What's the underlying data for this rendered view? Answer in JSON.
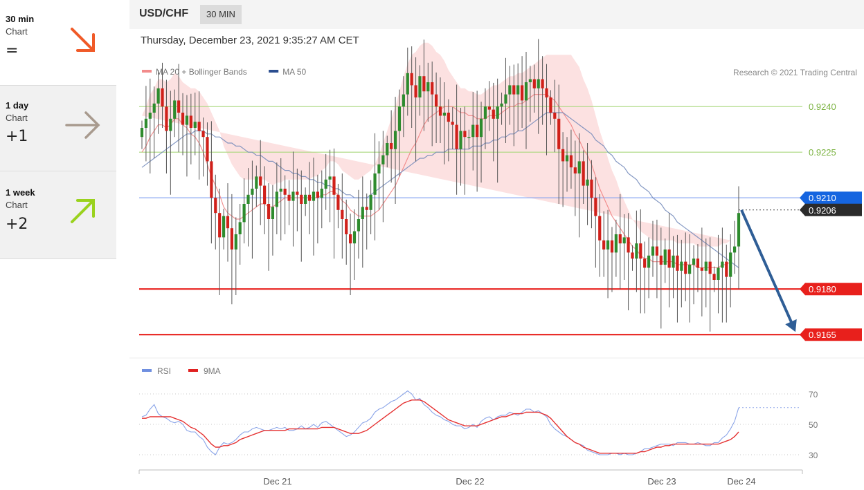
{
  "sidebar": {
    "items": [
      {
        "name": "30 min",
        "sub": "Chart",
        "score": "=",
        "icon": "arrow-down-right-icon",
        "color": "#f05a28"
      },
      {
        "name": "1 day",
        "sub": "Chart",
        "score": "+1",
        "icon": "arrow-right-icon",
        "color": "#a89a8e"
      },
      {
        "name": "1 week",
        "sub": "Chart",
        "score": "+2",
        "icon": "arrow-up-right-icon",
        "color": "#9ad21e"
      }
    ]
  },
  "header": {
    "symbol": "USD/CHF",
    "timeframe": "30 MIN",
    "datetime": "Thursday, December 23, 2021 9:35:27 AM CET"
  },
  "legend": {
    "price": [
      {
        "label": "MA 20 + Bollinger Bands",
        "color": "#f28b8b"
      },
      {
        "label": "MA 50",
        "color": "#2a4d8f"
      }
    ],
    "copyright": "Research © 2021 Trading Central",
    "rsi": [
      {
        "label": "RSI",
        "color": "#6f8fe0"
      },
      {
        "label": "9MA",
        "color": "#e02020"
      }
    ]
  },
  "chart_data": {
    "type": "candlestick",
    "ylim": [
      0.9158,
      0.9258
    ],
    "x_labels": [
      "Dec 21",
      "Dec 22",
      "Dec 23",
      "Dec 24"
    ],
    "levels": [
      {
        "value": 0.924,
        "label": "0.9240",
        "kind": "resistance"
      },
      {
        "value": 0.9225,
        "label": "0.9225",
        "kind": "resistance"
      },
      {
        "value": 0.921,
        "label": "0.9210",
        "kind": "pivot"
      },
      {
        "value": 0.918,
        "label": "0.9180",
        "kind": "support"
      },
      {
        "value": 0.9165,
        "label": "0.9165",
        "kind": "support"
      }
    ],
    "last_price": {
      "value": 0.9206,
      "label": "0.9206"
    },
    "closes": [
      0.9233,
      0.9236,
      0.9238,
      0.9241,
      0.9246,
      0.924,
      0.9232,
      0.9236,
      0.9242,
      0.9238,
      0.9234,
      0.9237,
      0.9233,
      0.9235,
      0.9232,
      0.923,
      0.9222,
      0.921,
      0.9205,
      0.9197,
      0.9204,
      0.92,
      0.9193,
      0.9198,
      0.9202,
      0.9208,
      0.9211,
      0.9213,
      0.9217,
      0.9214,
      0.9208,
      0.9203,
      0.9207,
      0.9212,
      0.9213,
      0.9211,
      0.9209,
      0.9212,
      0.9211,
      0.9208,
      0.9211,
      0.9209,
      0.9212,
      0.921,
      0.9213,
      0.9216,
      0.9217,
      0.9211,
      0.9206,
      0.9203,
      0.9198,
      0.9195,
      0.9199,
      0.9203,
      0.9207,
      0.9206,
      0.9211,
      0.9218,
      0.9221,
      0.9224,
      0.9228,
      0.9226,
      0.9232,
      0.924,
      0.9244,
      0.9251,
      0.9247,
      0.9243,
      0.925,
      0.9245,
      0.9248,
      0.9244,
      0.924,
      0.9237,
      0.9238,
      0.9235,
      0.9234,
      0.9226,
      0.9232,
      0.923,
      0.923,
      0.9234,
      0.923,
      0.9236,
      0.924,
      0.9239,
      0.9236,
      0.924,
      0.9241,
      0.9244,
      0.9247,
      0.9244,
      0.9247,
      0.9242,
      0.9248,
      0.9249,
      0.9246,
      0.9249,
      0.9246,
      0.9243,
      0.9238,
      0.9236,
      0.9226,
      0.9222,
      0.9224,
      0.922,
      0.9218,
      0.9222,
      0.9214,
      0.9216,
      0.921,
      0.9204,
      0.9196,
      0.9193,
      0.9196,
      0.9192,
      0.9198,
      0.9195,
      0.9197,
      0.9192,
      0.919,
      0.9195,
      0.919,
      0.9187,
      0.9191,
      0.9194,
      0.9191,
      0.9188,
      0.9193,
      0.9187,
      0.9191,
      0.9186,
      0.9189,
      0.9185,
      0.9188,
      0.919,
      0.9187,
      0.9186,
      0.9189,
      0.9185,
      0.9183,
      0.9187,
      0.9189,
      0.9184,
      0.9192,
      0.9194,
      0.9205
    ],
    "ma20": [
      0.9225,
      0.9227,
      0.923,
      0.9232,
      0.9234,
      0.9234,
      0.9233,
      0.9234,
      0.9236,
      0.9236,
      0.9234,
      0.9233,
      0.9231,
      0.923,
      0.9228,
      0.9225,
      0.9221,
      0.9217,
      0.9214,
      0.9211,
      0.9207,
      0.9205,
      0.9204,
      0.9203,
      0.9203,
      0.9204,
      0.9205,
      0.9206,
      0.9207,
      0.9208,
      0.9208,
      0.9207,
      0.9207,
      0.9208,
      0.9209,
      0.921,
      0.921,
      0.921,
      0.921,
      0.921,
      0.921,
      0.921,
      0.921,
      0.921,
      0.9211,
      0.9211,
      0.9212,
      0.9212,
      0.9211,
      0.9209,
      0.9208,
      0.9206,
      0.9205,
      0.9204,
      0.9204,
      0.9204,
      0.9204,
      0.9205,
      0.9206,
      0.9208,
      0.921,
      0.9212,
      0.9214,
      0.9217,
      0.922,
      0.9223,
      0.9226,
      0.9228,
      0.9231,
      0.9234,
      0.9236,
      0.9237,
      0.9238,
      0.9239,
      0.924,
      0.924,
      0.924,
      0.9239,
      0.9238,
      0.9238,
      0.9237,
      0.9237,
      0.9236,
      0.9236,
      0.9236,
      0.9237,
      0.9237,
      0.9237,
      0.9238,
      0.9239,
      0.924,
      0.924,
      0.9241,
      0.9241,
      0.9242,
      0.9243,
      0.9244,
      0.9244,
      0.9244,
      0.9244,
      0.9243,
      0.9242,
      0.924,
      0.9238,
      0.9236,
      0.9234,
      0.9231,
      0.9229,
      0.9226,
      0.9224,
      0.9221,
      0.9217,
      0.9213,
      0.921,
      0.9207,
      0.9204,
      0.9202,
      0.92,
      0.9198,
      0.9196,
      0.9194,
      0.9193,
      0.9191,
      0.919,
      0.919,
      0.9189,
      0.9189,
      0.9189,
      0.9189,
      0.9189,
      0.9189,
      0.9188,
      0.9188,
      0.9188,
      0.9188,
      0.9188,
      0.9187,
      0.9187,
      0.9187,
      0.9187,
      0.9187,
      0.9187,
      0.9188,
      0.9188,
      0.9189
    ],
    "ma50": [
      0.922,
      0.9221,
      0.9222,
      0.9223,
      0.9224,
      0.9225,
      0.9226,
      0.9227,
      0.9228,
      0.9229,
      0.923,
      0.9231,
      0.9231,
      0.9232,
      0.9232,
      0.9232,
      0.9231,
      0.9231,
      0.923,
      0.923,
      0.9229,
      0.9228,
      0.9228,
      0.9227,
      0.9227,
      0.9226,
      0.9225,
      0.9225,
      0.9224,
      0.9224,
      0.9223,
      0.9222,
      0.9222,
      0.9221,
      0.922,
      0.9219,
      0.9219,
      0.9218,
      0.9218,
      0.9217,
      0.9217,
      0.9216,
      0.9216,
      0.9215,
      0.9215,
      0.9214,
      0.9214,
      0.9213,
      0.9213,
      0.9212,
      0.9211,
      0.9211,
      0.921,
      0.921,
      0.921,
      0.921,
      0.9211,
      0.9212,
      0.9213,
      0.9214,
      0.9215,
      0.9216,
      0.9217,
      0.9218,
      0.9219,
      0.922,
      0.9221,
      0.9222,
      0.9223,
      0.9223,
      0.9224,
      0.9224,
      0.9225,
      0.9225,
      0.9225,
      0.9226,
      0.9226,
      0.9226,
      0.9226,
      0.9226,
      0.9226,
      0.9227,
      0.9227,
      0.9227,
      0.9228,
      0.9228,
      0.9229,
      0.9229,
      0.923,
      0.923,
      0.9231,
      0.9231,
      0.9232,
      0.9232,
      0.9233,
      0.9234,
      0.9235,
      0.9236,
      0.9237,
      0.9238,
      0.9238,
      0.9238,
      0.9238,
      0.9238,
      0.9237,
      0.9236,
      0.9235,
      0.9234,
      0.9233,
      0.9232,
      0.9231,
      0.9229,
      0.9228,
      0.9227,
      0.9225,
      0.9224,
      0.9222,
      0.9221,
      0.922,
      0.9218,
      0.9217,
      0.9216,
      0.9214,
      0.9213,
      0.9212,
      0.921,
      0.9209,
      0.9208,
      0.9206,
      0.9205,
      0.9204,
      0.9202,
      0.9201,
      0.92,
      0.9199,
      0.9198,
      0.9197,
      0.9196,
      0.9195,
      0.9194,
      0.9193,
      0.9192,
      0.9191,
      0.919,
      0.9189,
      0.9188,
      0.9187
    ],
    "bb_width": [
      0.0012,
      0.0013,
      0.0014,
      0.0014,
      0.0015,
      0.0015,
      0.0015,
      0.0015,
      0.0015,
      0.0014,
      0.0014,
      0.0014,
      0.0015,
      0.0016,
      0.0017,
      0.0018,
      0.002,
      0.0021,
      0.0021,
      0.0021,
      0.002,
      0.0019,
      0.0017,
      0.0016,
      0.0014,
      0.0012,
      0.0011,
      0.001,
      0.0009,
      0.0008,
      0.0008,
      0.0008,
      0.0007,
      0.0007,
      0.0006,
      0.0006,
      0.0006,
      0.0006,
      0.0006,
      0.0006,
      0.0006,
      0.0006,
      0.0007,
      0.0007,
      0.0008,
      0.0009,
      0.001,
      0.001,
      0.001,
      0.001,
      0.001,
      0.0011,
      0.0011,
      0.0012,
      0.0013,
      0.0014,
      0.0015,
      0.0016,
      0.0018,
      0.002,
      0.0022,
      0.0024,
      0.0026,
      0.0028,
      0.003,
      0.0031,
      0.0031,
      0.003,
      0.0029,
      0.0027,
      0.0025,
      0.0023,
      0.002,
      0.0018,
      0.0015,
      0.0012,
      0.001,
      0.0009,
      0.0008,
      0.0008,
      0.0008,
      0.0008,
      0.0008,
      0.0008,
      0.0009,
      0.0009,
      0.001,
      0.001,
      0.001,
      0.001,
      0.001,
      0.001,
      0.001,
      0.001,
      0.001,
      0.001,
      0.001,
      0.0011,
      0.0012,
      0.0013,
      0.0014,
      0.0015,
      0.0017,
      0.0019,
      0.0021,
      0.0023,
      0.0024,
      0.0024,
      0.0023,
      0.0022,
      0.0021,
      0.002,
      0.0019,
      0.0018,
      0.0016,
      0.0015,
      0.0014,
      0.0012,
      0.0011,
      0.001,
      0.0009,
      0.0008,
      0.0008,
      0.0008,
      0.0007,
      0.0007,
      0.0007,
      0.0007,
      0.0007,
      0.0007,
      0.0007,
      0.0007,
      0.0007,
      0.0007,
      0.0007,
      0.0007,
      0.0007,
      0.0007,
      0.0007,
      0.0007,
      0.0007,
      0.0007,
      0.0007,
      0.0007,
      0.0007,
      0.0007,
      0.0007,
      0.0007,
      0.0007
    ],
    "forecast": {
      "from": 0.9206,
      "to": 0.9165
    },
    "rsi": {
      "levels": [
        70,
        50,
        30
      ],
      "ylim": [
        20,
        80
      ],
      "values": [
        55,
        56,
        60,
        63,
        57,
        55,
        54,
        52,
        51,
        52,
        50,
        46,
        45,
        45,
        42,
        40,
        35,
        32,
        30,
        35,
        38,
        37,
        38,
        40,
        43,
        45,
        45,
        47,
        48,
        47,
        46,
        46,
        47,
        48,
        47,
        48,
        46,
        46,
        47,
        49,
        47,
        48,
        50,
        48,
        51,
        52,
        50,
        48,
        46,
        44,
        42,
        43,
        45,
        48,
        51,
        52,
        54,
        58,
        60,
        61,
        63,
        65,
        66,
        68,
        70,
        72,
        70,
        66,
        67,
        63,
        61,
        58,
        56,
        55,
        53,
        52,
        50,
        49,
        49,
        47,
        48,
        50,
        48,
        52,
        54,
        55,
        53,
        55,
        56,
        56,
        58,
        57,
        56,
        58,
        60,
        60,
        58,
        59,
        57,
        55,
        50,
        47,
        45,
        43,
        42,
        40,
        38,
        37,
        36,
        33,
        32,
        31,
        30,
        30,
        30,
        31,
        31,
        30,
        31,
        30,
        30,
        31,
        32,
        34,
        34,
        35,
        36,
        37,
        37,
        37,
        36,
        38,
        38,
        38,
        37,
        37,
        38,
        37,
        36,
        36,
        38,
        38,
        41,
        43,
        47,
        52,
        61
      ],
      "ma9": [
        54,
        54,
        55,
        55,
        55,
        55,
        55,
        55,
        54,
        53,
        52,
        50,
        48,
        47,
        45,
        43,
        40,
        37,
        35,
        35,
        36,
        36,
        37,
        38,
        40,
        41,
        42,
        43,
        44,
        45,
        46,
        46,
        46,
        46,
        46,
        46,
        47,
        47,
        47,
        47,
        47,
        47,
        47,
        47,
        48,
        48,
        48,
        48,
        47,
        46,
        45,
        44,
        44,
        44,
        45,
        46,
        48,
        50,
        52,
        54,
        56,
        58,
        60,
        62,
        64,
        65,
        66,
        66,
        66,
        65,
        63,
        61,
        59,
        57,
        55,
        53,
        52,
        51,
        50,
        49,
        49,
        49,
        49,
        50,
        51,
        52,
        53,
        54,
        55,
        55,
        56,
        57,
        57,
        57,
        58,
        58,
        58,
        58,
        57,
        56,
        54,
        51,
        48,
        45,
        42,
        40,
        38,
        37,
        35,
        34,
        33,
        32,
        31,
        31,
        31,
        31,
        31,
        31,
        31,
        31,
        31,
        31,
        32,
        32,
        33,
        34,
        35,
        35,
        36,
        36,
        37,
        37,
        37,
        37,
        37,
        37,
        37,
        37,
        37,
        37,
        37,
        37,
        38,
        39,
        40,
        42,
        45
      ]
    }
  }
}
